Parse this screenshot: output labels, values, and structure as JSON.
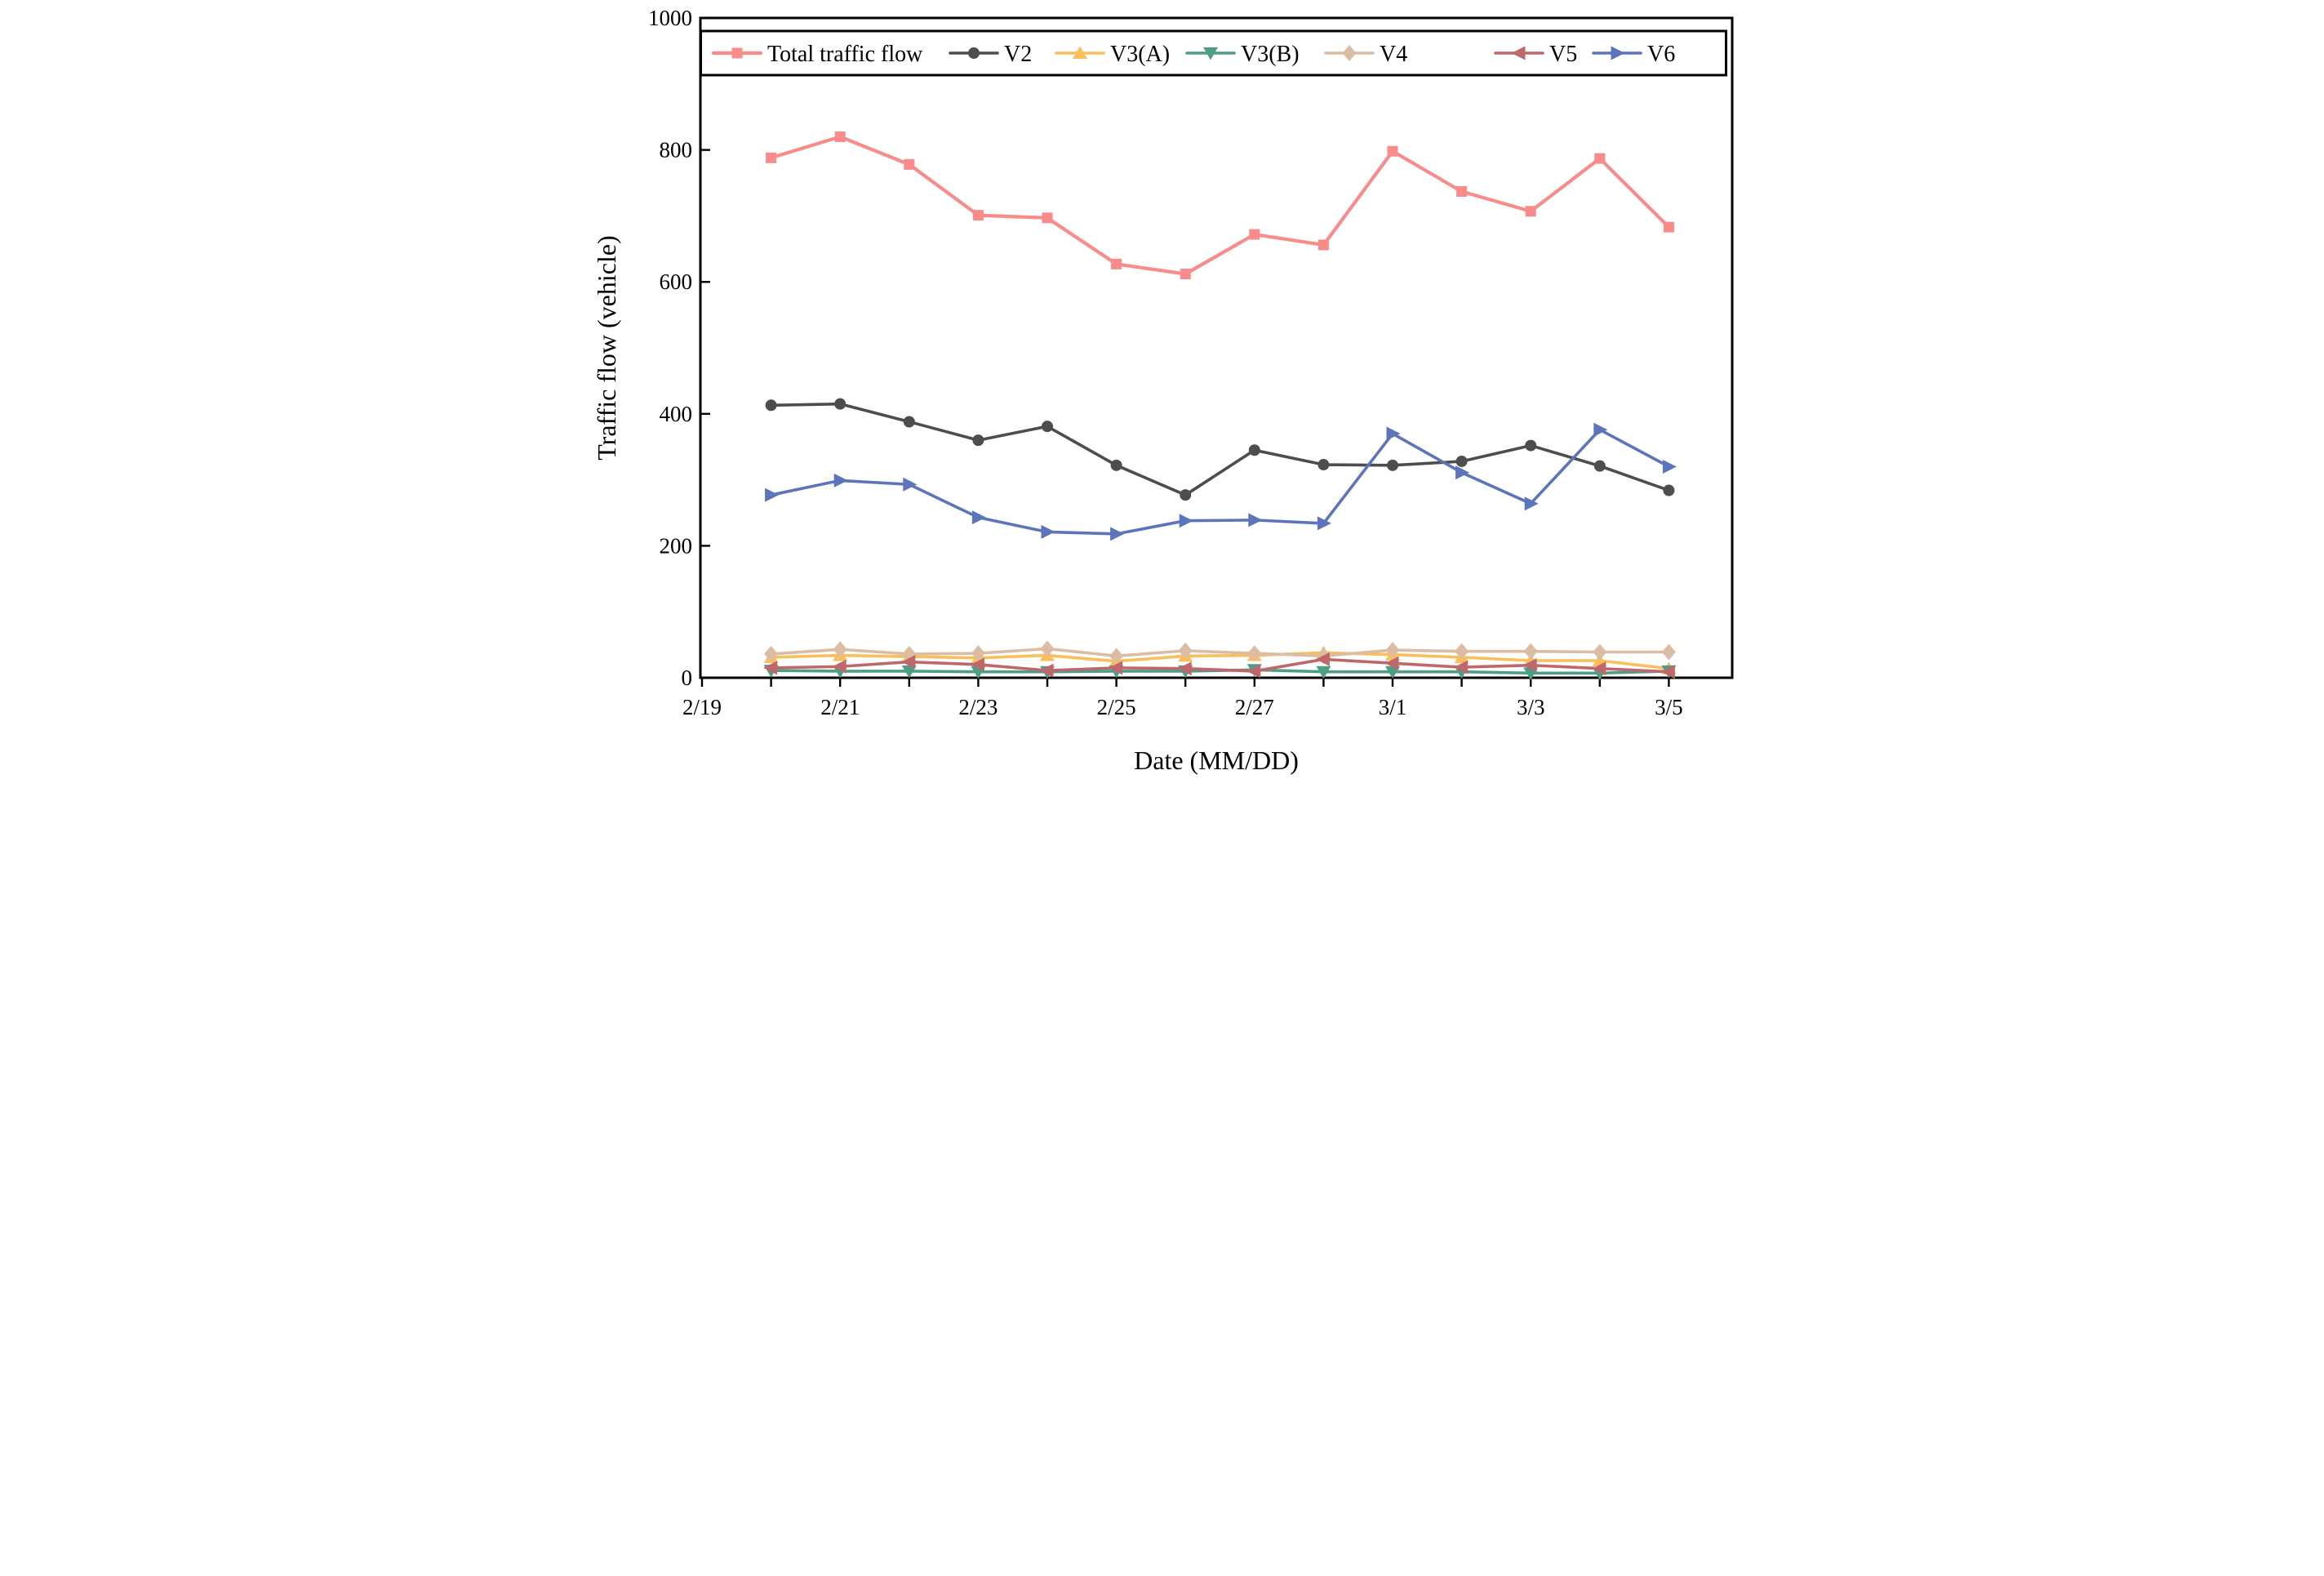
{
  "chart_data": {
    "type": "line",
    "title": "",
    "xlabel": "Date (MM/DD)",
    "ylabel": "Traffic flow (vehicle)",
    "ylim": [
      0,
      1000
    ],
    "y_ticks": [
      0,
      200,
      400,
      600,
      800,
      1000
    ],
    "x_categories": [
      "2/20",
      "2/21",
      "2/22",
      "2/23",
      "2/24",
      "2/25",
      "2/26",
      "2/27",
      "2/28",
      "3/1",
      "3/2",
      "3/3",
      "3/4",
      "3/5"
    ],
    "x_tick_labels": [
      "2/19",
      "2/21",
      "2/23",
      "2/25",
      "2/27",
      "3/1",
      "3/3",
      "3/5"
    ],
    "x_axis_start_label": "2/19",
    "grid": "off",
    "legend_position": "top-inside-row",
    "axis_color": "#000000",
    "background_color": "#ffffff",
    "series": [
      {
        "name": "Total traffic flow",
        "color": "#F98B8B",
        "marker": "square",
        "values": [
          788,
          820,
          778,
          701,
          697,
          627,
          612,
          672,
          656,
          798,
          737,
          707,
          787,
          683
        ]
      },
      {
        "name": "V2",
        "color": "#4D4D4D",
        "marker": "circle",
        "values": [
          413,
          415,
          388,
          360,
          381,
          322,
          277,
          345,
          323,
          322,
          328,
          352,
          321,
          284
        ]
      },
      {
        "name": "V3(A)",
        "color": "#FBBE5D",
        "marker": "triangle-up",
        "values": [
          31,
          34,
          32,
          30,
          34,
          25,
          33,
          34,
          38,
          35,
          31,
          26,
          26,
          14
        ]
      },
      {
        "name": "V3(B)",
        "color": "#4E9E85",
        "marker": "triangle-down",
        "values": [
          11,
          10,
          10,
          9,
          9,
          10,
          10,
          12,
          9,
          9,
          9,
          7,
          7,
          10
        ]
      },
      {
        "name": "V4",
        "color": "#DCBCA3",
        "marker": "diamond",
        "values": [
          36,
          43,
          36,
          37,
          44,
          33,
          41,
          37,
          33,
          42,
          40,
          40,
          39,
          39
        ]
      },
      {
        "name": "V5",
        "color": "#BE686C",
        "marker": "triangle-left",
        "values": [
          15,
          17,
          24,
          20,
          11,
          15,
          14,
          10,
          28,
          22,
          16,
          19,
          14,
          9
        ]
      },
      {
        "name": "V6",
        "color": "#5C74BC",
        "marker": "triangle-right",
        "values": [
          277,
          299,
          293,
          243,
          221,
          218,
          238,
          239,
          234,
          370,
          311,
          264,
          376,
          320
        ]
      }
    ]
  }
}
